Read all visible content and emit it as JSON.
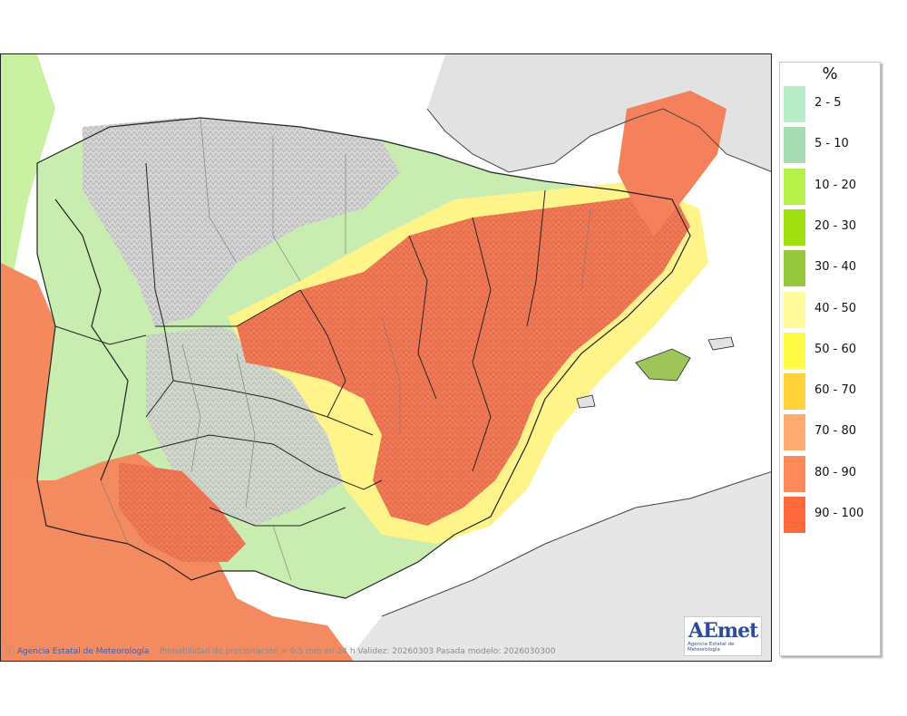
{
  "map": {
    "credit_agency": "Agencia Estatal de Meteorología",
    "credit_details": "Probabilidad de precipitación > 0.5 mm en 24 h Validez: 20260303 Pasada modelo: 2026030300",
    "logo_text": "AEmet",
    "logo_subtitle": "Agencia Estatal de Meteorología"
  },
  "legend": {
    "title": "%",
    "items": [
      {
        "label": "2 - 5",
        "color": "#b8ecc8"
      },
      {
        "label": "5 - 10",
        "color": "#a6dcb4"
      },
      {
        "label": "10 - 20",
        "color": "#b6f04a"
      },
      {
        "label": "20 - 30",
        "color": "#a0de10"
      },
      {
        "label": "30 - 40",
        "color": "#98c83c"
      },
      {
        "label": "40 - 50",
        "color": "#fffa9a"
      },
      {
        "label": "50 - 60",
        "color": "#fffa46"
      },
      {
        "label": "60 - 70",
        "color": "#ffd23c"
      },
      {
        "label": "70 - 80",
        "color": "#ffaa6e"
      },
      {
        "label": "80 - 90",
        "color": "#ff8a5a"
      },
      {
        "label": "90 - 100",
        "color": "#ff6a3c"
      }
    ]
  }
}
